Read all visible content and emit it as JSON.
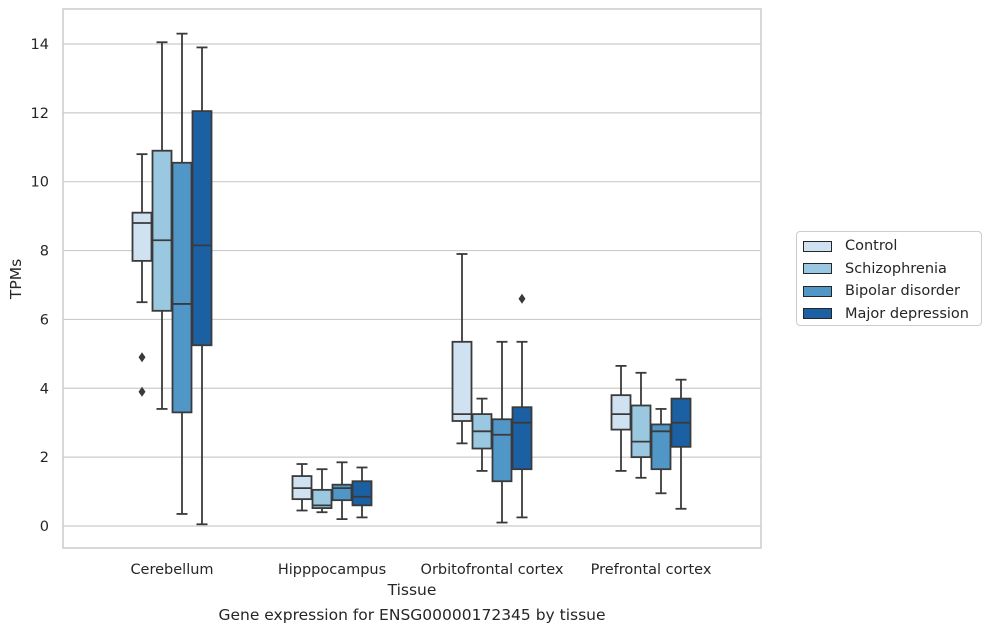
{
  "caption": "Gene expression for ENSG00000172345 by tissue",
  "chart_data": {
    "type": "box",
    "xlabel": "Tissue",
    "ylabel": "TPMs",
    "ylim": [
      -0.6,
      15.0
    ],
    "yticks": [
      0,
      2,
      4,
      6,
      8,
      10,
      12,
      14
    ],
    "grid": "horizontal",
    "legend_placement": "right",
    "categories": [
      "Cerebellum",
      "Hipppocampus",
      "Orbitofrontal cortex",
      "Prefrontal cortex"
    ],
    "series": [
      {
        "name": "Control",
        "color": "#d0e1f2",
        "boxes": [
          {
            "whisker_low": 6.5,
            "q1": 7.7,
            "median": 8.8,
            "q3": 9.1,
            "whisker_high": 10.8,
            "outliers": [
              4.9,
              3.9
            ]
          },
          {
            "whisker_low": 0.45,
            "q1": 0.78,
            "median": 1.1,
            "q3": 1.45,
            "whisker_high": 1.8,
            "outliers": []
          },
          {
            "whisker_low": 2.4,
            "q1": 3.05,
            "median": 3.25,
            "q3": 5.35,
            "whisker_high": 7.9,
            "outliers": []
          },
          {
            "whisker_low": 1.6,
            "q1": 2.8,
            "median": 3.25,
            "q3": 3.8,
            "whisker_high": 4.65,
            "outliers": []
          }
        ]
      },
      {
        "name": "Schizophrenia",
        "color": "#9ac8e0",
        "boxes": [
          {
            "whisker_low": 3.4,
            "q1": 6.25,
            "median": 8.3,
            "q3": 10.9,
            "whisker_high": 14.05,
            "outliers": []
          },
          {
            "whisker_low": 0.4,
            "q1": 0.52,
            "median": 0.6,
            "q3": 1.05,
            "whisker_high": 1.65,
            "outliers": []
          },
          {
            "whisker_low": 1.6,
            "q1": 2.25,
            "median": 2.75,
            "q3": 3.25,
            "whisker_high": 3.7,
            "outliers": []
          },
          {
            "whisker_low": 1.4,
            "q1": 2.0,
            "median": 2.45,
            "q3": 3.5,
            "whisker_high": 4.45,
            "outliers": []
          }
        ]
      },
      {
        "name": "Bipolar disorder",
        "color": "#5097c8",
        "boxes": [
          {
            "whisker_low": 0.35,
            "q1": 3.3,
            "median": 6.45,
            "q3": 10.55,
            "whisker_high": 14.3,
            "outliers": []
          },
          {
            "whisker_low": 0.2,
            "q1": 0.75,
            "median": 1.1,
            "q3": 1.2,
            "whisker_high": 1.85,
            "outliers": []
          },
          {
            "whisker_low": 0.1,
            "q1": 1.3,
            "median": 2.65,
            "q3": 3.1,
            "whisker_high": 5.35,
            "outliers": []
          },
          {
            "whisker_low": 0.95,
            "q1": 1.65,
            "median": 2.75,
            "q3": 2.95,
            "whisker_high": 3.4,
            "outliers": []
          }
        ]
      },
      {
        "name": "Major depression",
        "color": "#1c60a4",
        "boxes": [
          {
            "whisker_low": 0.05,
            "q1": 5.25,
            "median": 8.15,
            "q3": 12.05,
            "whisker_high": 13.9,
            "outliers": []
          },
          {
            "whisker_low": 0.25,
            "q1": 0.6,
            "median": 0.85,
            "q3": 1.3,
            "whisker_high": 1.7,
            "outliers": []
          },
          {
            "whisker_low": 0.25,
            "q1": 1.65,
            "median": 3.0,
            "q3": 3.45,
            "whisker_high": 5.35,
            "outliers": [
              6.6
            ]
          },
          {
            "whisker_low": 0.5,
            "q1": 2.3,
            "median": 3.0,
            "q3": 3.7,
            "whisker_high": 4.25,
            "outliers": []
          }
        ]
      }
    ]
  }
}
